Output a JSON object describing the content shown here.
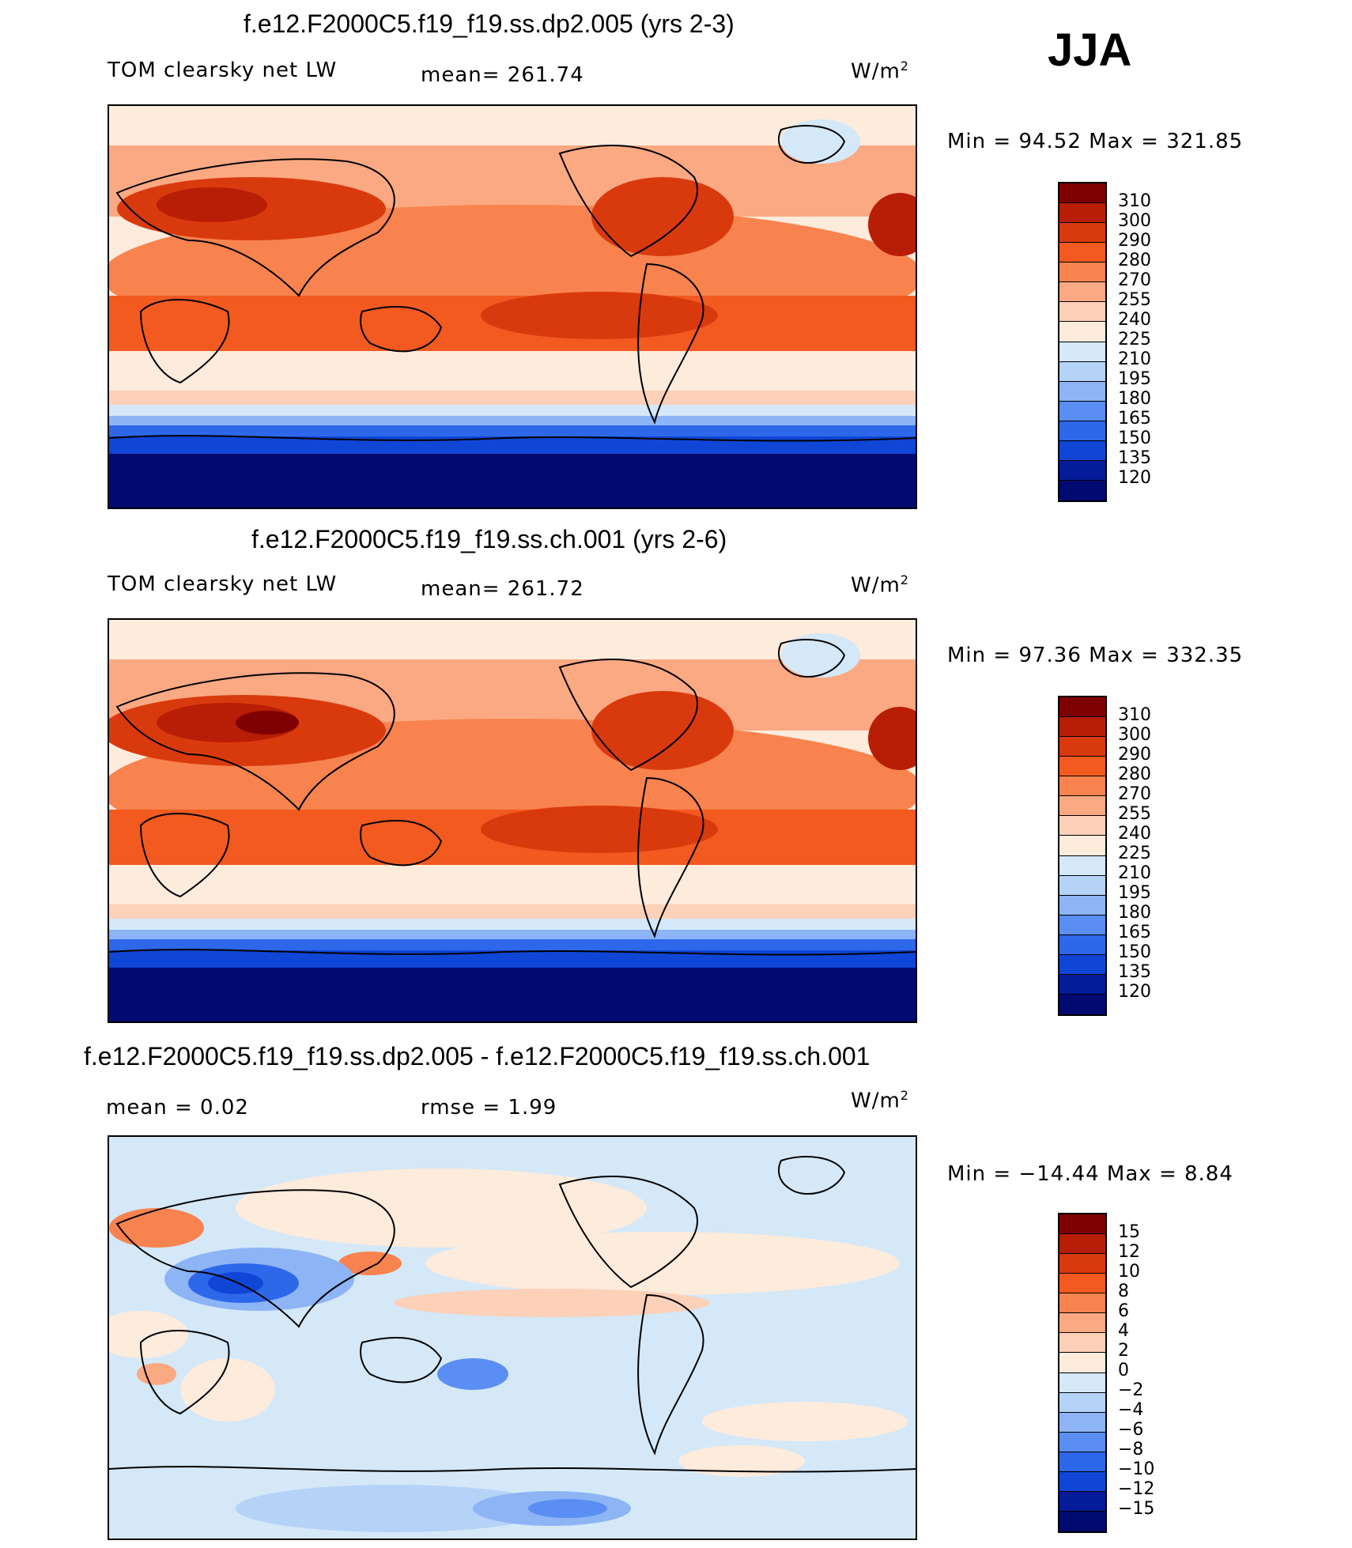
{
  "season": "JJA",
  "panels": [
    {
      "title": "f.e12.F2000C5.f19_f19.ss.dp2.005 (yrs 2-3)",
      "left_label": "TOM clearsky net LW",
      "center_label": "mean= 261.74",
      "units": "W/m",
      "units_sup": "2",
      "minmax": "Min =   94.52 Max =  321.85",
      "levels": [
        "310",
        "300",
        "290",
        "280",
        "270",
        "255",
        "240",
        "225",
        "210",
        "195",
        "180",
        "165",
        "150",
        "135",
        "120"
      ],
      "colors": [
        "#7f0000",
        "#b81d05",
        "#d93a0d",
        "#f25a1f",
        "#f8834e",
        "#fba983",
        "#fdd0b8",
        "#fdebdc",
        "#d4e8f8",
        "#b5d2f7",
        "#8db4f5",
        "#5b8ef2",
        "#2d68ea",
        "#0f46d6",
        "#041c9a",
        "#000a70"
      ]
    },
    {
      "title": "f.e12.F2000C5.f19_f19.ss.ch.001 (yrs 2-6)",
      "left_label": "TOM clearsky net LW",
      "center_label": "mean= 261.72",
      "units": "W/m",
      "units_sup": "2",
      "minmax": "Min =   97.36 Max =  332.35",
      "levels": [
        "310",
        "300",
        "290",
        "280",
        "270",
        "255",
        "240",
        "225",
        "210",
        "195",
        "180",
        "165",
        "150",
        "135",
        "120"
      ],
      "colors": [
        "#7f0000",
        "#b81d05",
        "#d93a0d",
        "#f25a1f",
        "#f8834e",
        "#fba983",
        "#fdd0b8",
        "#fdebdc",
        "#d4e8f8",
        "#b5d2f7",
        "#8db4f5",
        "#5b8ef2",
        "#2d68ea",
        "#0f46d6",
        "#041c9a",
        "#000a70"
      ]
    },
    {
      "title": "f.e12.F2000C5.f19_f19.ss.dp2.005 - f.e12.F2000C5.f19_f19.ss.ch.001",
      "left_label": "mean =    0.02",
      "center_label": "rmse =    1.99",
      "units": "W/m",
      "units_sup": "2",
      "minmax": "Min = −14.44 Max =    8.84",
      "levels": [
        "15",
        "12",
        "10",
        "8",
        "6",
        "4",
        "2",
        "0",
        "−2",
        "−4",
        "−6",
        "−8",
        "−10",
        "−12",
        "−15"
      ],
      "colors": [
        "#7f0000",
        "#b81d05",
        "#d93a0d",
        "#f25a1f",
        "#f8834e",
        "#fba983",
        "#fdd0b8",
        "#fdebdc",
        "#d4e8f8",
        "#b5d2f7",
        "#8db4f5",
        "#5b8ef2",
        "#2d68ea",
        "#0f46d6",
        "#041c9a",
        "#000a70"
      ]
    }
  ]
}
